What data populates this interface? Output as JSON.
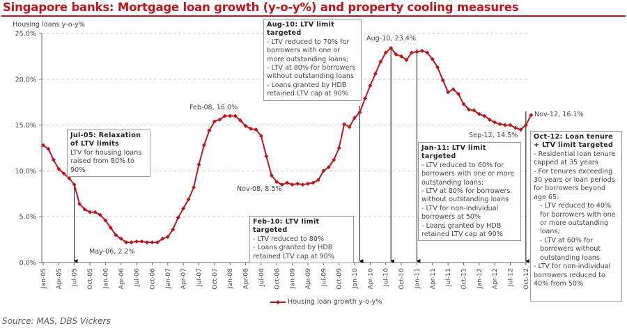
{
  "title": "Singapore banks: Mortgage loan growth (y-o-y%) and property cooling measures",
  "source": "Source: MAS, DBS Vickers",
  "colors": {
    "series": "#c0141c",
    "title": "#c0141c",
    "axis": "#666666",
    "grid": "#cccccc"
  },
  "chart_data": {
    "type": "line",
    "title": "Singapore banks: Mortgage loan growth (y-o-y%) and property cooling measures",
    "ylabel": "Housing loans y-o-y%",
    "xlabel": "",
    "ylim": [
      0,
      25
    ],
    "yticks": [
      "0.0%",
      "5.0%",
      "10.0%",
      "15.0%",
      "20.0%",
      "25.0%"
    ],
    "ytick_values": [
      0,
      5,
      10,
      15,
      20,
      25
    ],
    "grid": "horizontal dashed",
    "legend_position": "bottom",
    "x_start": "Jan-05",
    "x_end": "Nov-12",
    "frequency": "monthly",
    "xticks": [
      "Jan-05",
      "Apr-05",
      "Jul-05",
      "Oct-05",
      "Jan-06",
      "Apr-06",
      "Jul-06",
      "Oct-06",
      "Jan-07",
      "Apr-07",
      "Jul-07",
      "Oct-07",
      "Jan-08",
      "Apr-08",
      "Jul-08",
      "Oct-08",
      "Jan-09",
      "Apr-09",
      "Jul-09",
      "Oct-09",
      "Jan-10",
      "Apr-10",
      "Jul-10",
      "Oct-10",
      "Jan-11",
      "Apr-11",
      "Jul-11",
      "Oct-11",
      "Jan-12",
      "Apr-12",
      "Jul-12",
      "Oct-12"
    ],
    "series": [
      {
        "name": "Housing loan growth y-o-y%",
        "values": [
          12.8,
          12.4,
          11.2,
          10.2,
          9.7,
          9.2,
          8.5,
          6.4,
          5.8,
          5.5,
          5.5,
          5.2,
          4.6,
          3.8,
          3.0,
          2.6,
          2.2,
          2.2,
          2.3,
          2.3,
          2.2,
          2.2,
          2.2,
          2.6,
          2.8,
          3.6,
          4.9,
          5.9,
          6.9,
          8.2,
          10.7,
          12.8,
          14.4,
          15.4,
          15.6,
          16.0,
          16.0,
          16.0,
          15.5,
          14.9,
          14.6,
          14.5,
          13.8,
          11.6,
          9.5,
          8.8,
          8.5,
          8.7,
          8.5,
          8.6,
          8.5,
          8.6,
          8.7,
          9.0,
          10.0,
          10.4,
          11.2,
          12.5,
          15.1,
          14.8,
          15.8,
          16.4,
          17.9,
          19.3,
          20.6,
          21.9,
          22.9,
          23.4,
          22.7,
          22.5,
          22.1,
          22.9,
          23.0,
          23.1,
          22.9,
          22.2,
          21.3,
          19.9,
          18.6,
          18.9,
          18.4,
          17.3,
          16.7,
          16.6,
          16.2,
          16.0,
          15.6,
          15.3,
          15.1,
          15.0,
          15.0,
          14.7,
          14.5,
          15.0,
          16.1
        ]
      }
    ],
    "data_labels": [
      {
        "text": "May-06, 2.2%"
      },
      {
        "text": "Feb-08, 16.0%"
      },
      {
        "text": "Nov-08, 8.5%"
      },
      {
        "text": "Aug-10, 23.4%"
      },
      {
        "text": "Sep-12, 14.5%"
      },
      {
        "text": "Nov-12, 16.1%"
      }
    ],
    "annotations": [
      {
        "month": "Jul-05",
        "heading": "Jul-05: Relaxation of LTV limits",
        "lines": [
          "LTV for housing loans raised from 80% to 90%"
        ]
      },
      {
        "month": "Feb-10",
        "heading": "Feb-10: LTV limit targeted",
        "lines": [
          "- LTV reduced to 80%",
          "- Loans granted by HDB retained LTV cap at 90%"
        ]
      },
      {
        "month": "Aug-10",
        "heading": "Aug-10: LTV limit targeted",
        "lines": [
          "- LTV reduced to 70% for borrowers with one or more outstanding loans;",
          "- LTV at 80% for borrowers without outstanding loans",
          "- Loans granted by HDB retained LTV cap at 90%"
        ]
      },
      {
        "month": "Jan-11",
        "heading": "Jan-11: LTV limit targeted",
        "lines": [
          "- LTV reduced to 60% for borrowers with one or more outstanding loans;",
          "- LTV at 80% for borrowers without outstanding loans",
          "- LTV for non-individual borrowers at 50%",
          "- Loans granted by HDB retained LTV cap at 90%"
        ]
      },
      {
        "month": "Oct-12",
        "heading": "Oct-12: Loan tenure + LTV limit targeted",
        "lines": [
          "- Residential loan tenure capped at 35 years",
          "- For tenures exceeding 30 years or loan periods for borrowers beyond age 65:",
          "- LTV reduced to 40% for borrowers with one or more outstanding loans;",
          "- LTV at 60% for borrowers without outstanding loans",
          "- LTV for non-individual borrowers reduced to 40% from 50%"
        ]
      }
    ]
  }
}
